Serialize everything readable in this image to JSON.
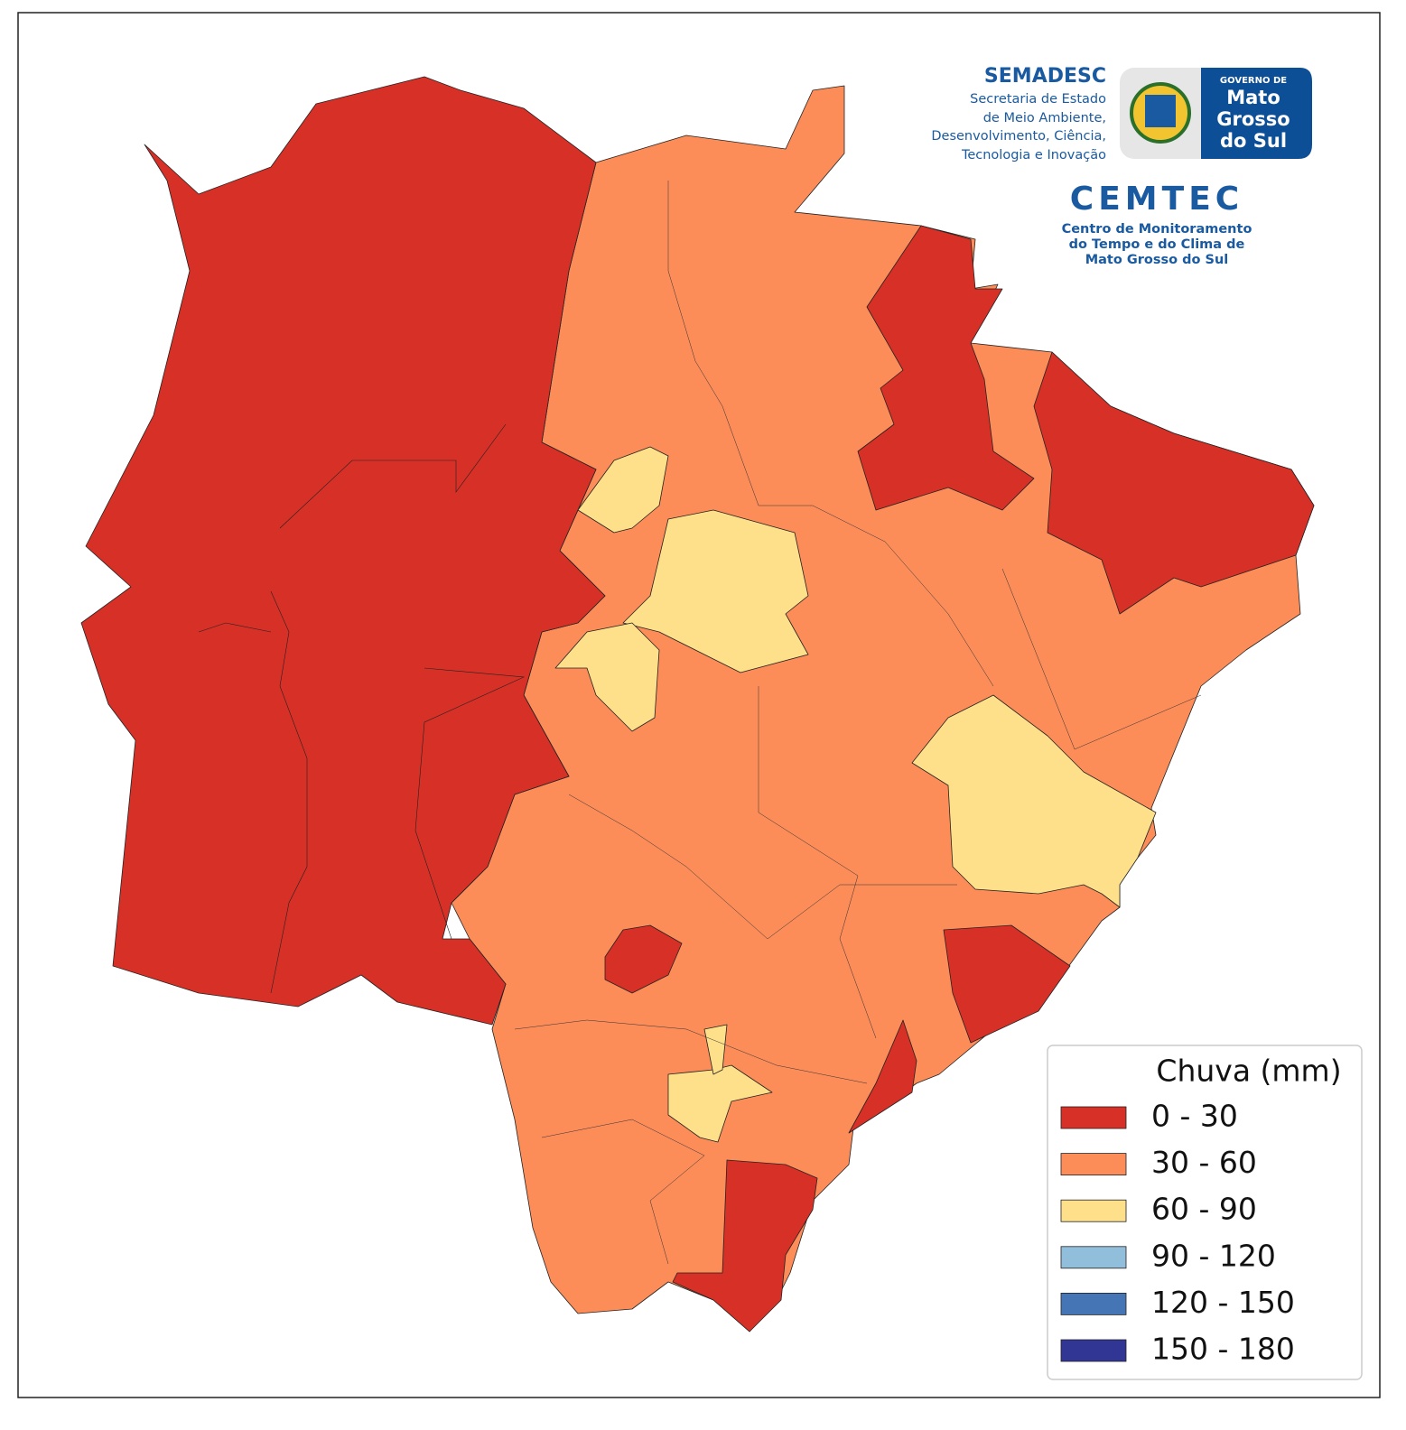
{
  "header": {
    "semadesc": {
      "title": "SEMADESC",
      "lines": [
        "Secretaria de Estado",
        "de Meio Ambiente,",
        "Desenvolvimento, Ciência,",
        "Tecnologia e Inovação"
      ]
    },
    "governo": {
      "top": "GOVERNO DE",
      "lines": [
        "Mato",
        "Grosso",
        "do Sul"
      ]
    },
    "cemtec": {
      "title": "CEMTEC",
      "lines": [
        "Centro de Monitoramento",
        "do Tempo e do Clima de",
        "Mato Grosso do Sul"
      ]
    }
  },
  "legend": {
    "title": "Chuva (mm)",
    "items": [
      {
        "label": "0 - 30",
        "color": "#d73027"
      },
      {
        "label": "30 - 60",
        "color": "#fc8d59"
      },
      {
        "label": "60 - 90",
        "color": "#fee08b"
      },
      {
        "label": "90 - 120",
        "color": "#91bfdb"
      },
      {
        "label": "120 - 150",
        "color": "#4575b4"
      },
      {
        "label": "150 - 180",
        "color": "#313695"
      }
    ]
  }
}
